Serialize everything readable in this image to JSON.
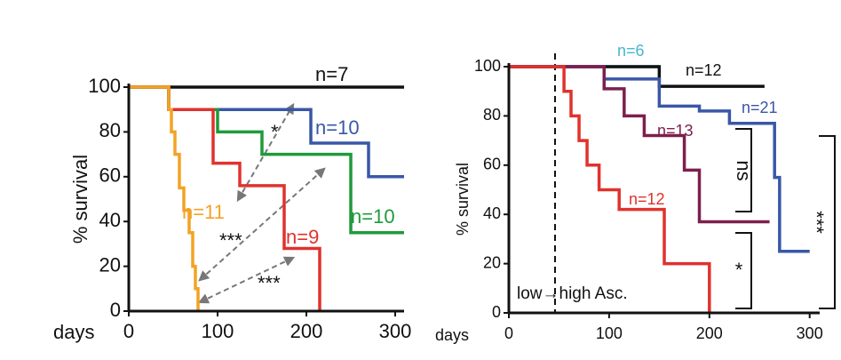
{
  "chart_data": [
    {
      "type": "step",
      "y_label": "% survival",
      "x_label": "days",
      "xlim": [
        0,
        310
      ],
      "ylim": [
        0,
        100
      ],
      "xticks": [
        0,
        100,
        200,
        300
      ],
      "yticks": [
        0,
        20,
        40,
        60,
        80,
        100
      ],
      "series": [
        {
          "name": "n=7",
          "color": "#111111",
          "x": [
            0,
            310
          ],
          "values": [
            100,
            100
          ]
        },
        {
          "name": "n=10",
          "color": "#3a57a7",
          "x": [
            0,
            45,
            205,
            270,
            310
          ],
          "values": [
            100,
            90,
            75,
            60,
            60
          ]
        },
        {
          "name": "n=10",
          "color": "#1f9a3c",
          "x": [
            0,
            45,
            100,
            150,
            250,
            310
          ],
          "values": [
            100,
            90,
            80,
            70,
            35,
            35
          ]
        },
        {
          "name": "n=9",
          "color": "#e0322d",
          "x": [
            0,
            45,
            95,
            125,
            175,
            215
          ],
          "values": [
            100,
            90,
            66,
            56,
            28,
            0
          ]
        },
        {
          "name": "n=11",
          "color": "#f2a325",
          "x": [
            0,
            45,
            48,
            52,
            57,
            62,
            68,
            72,
            75,
            78
          ],
          "values": [
            100,
            90,
            80,
            70,
            55,
            45,
            35,
            20,
            10,
            0
          ]
        }
      ],
      "annotations": [
        "*",
        "***",
        "***"
      ]
    },
    {
      "type": "step",
      "y_label": "% survival",
      "x_label": "days",
      "xlim": [
        0,
        310
      ],
      "ylim": [
        0,
        100
      ],
      "xticks": [
        0,
        100,
        200,
        300
      ],
      "yticks": [
        0,
        20,
        40,
        60,
        80,
        100
      ],
      "series": [
        {
          "name": "n=6",
          "color": "#46b8d0",
          "x": [
            0,
            150
          ],
          "values": [
            100,
            100
          ]
        },
        {
          "name": "n=12",
          "color": "#111111",
          "x": [
            0,
            150,
            255
          ],
          "values": [
            100,
            92,
            92
          ]
        },
        {
          "name": "n=21",
          "color": "#3a57a7",
          "x": [
            0,
            95,
            150,
            190,
            220,
            265,
            270,
            300
          ],
          "values": [
            100,
            95,
            84,
            82,
            77,
            55,
            25,
            25
          ]
        },
        {
          "name": "n=13",
          "color": "#7d1f4e",
          "x": [
            0,
            95,
            115,
            135,
            175,
            190,
            260
          ],
          "values": [
            100,
            91,
            80,
            72,
            58,
            37,
            37
          ]
        },
        {
          "name": "n=12",
          "color": "#e0322d",
          "x": [
            0,
            55,
            62,
            70,
            78,
            90,
            110,
            155,
            200
          ],
          "values": [
            100,
            90,
            80,
            70,
            60,
            50,
            42,
            20,
            0
          ]
        }
      ],
      "annotations": [
        "ns",
        "*",
        "***",
        "low→high Asc."
      ]
    }
  ]
}
